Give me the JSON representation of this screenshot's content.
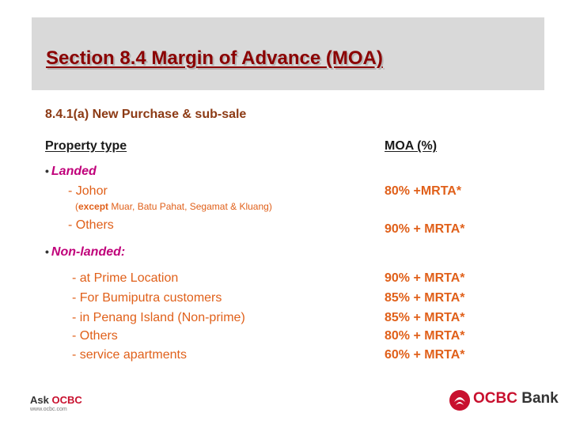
{
  "title": "Section 8.4 Margin of Advance (MOA)",
  "subtitle": "8.4.1(a) New Purchase & sub-sale",
  "table": {
    "col1_header": "Property type",
    "col2_header": "MOA (%)"
  },
  "landed": {
    "label": "Landed",
    "items": [
      {
        "name": "- Johor",
        "value": "80% +MRTA*"
      },
      {
        "name": "- Others",
        "value": "90% + MRTA*"
      }
    ],
    "note_prefix": "(",
    "note_bold": "except",
    "note_rest": " Muar, Batu Pahat, Segamat & Kluang)"
  },
  "non_landed": {
    "label": "Non-landed:",
    "items": [
      {
        "name": "- at Prime Location",
        "value": "90% + MRTA*"
      },
      {
        "name": "- For Bumiputra customers",
        "value": "85% + MRTA*"
      },
      {
        "name": "- in Penang Island (Non-prime)",
        "value": "85% + MRTA*"
      },
      {
        "name": "- Others",
        "value": "80% + MRTA*"
      },
      {
        "name": "- service apartments",
        "value": "60% + MRTA*"
      }
    ]
  },
  "footer": {
    "ask": "Ask",
    "brand": "OCBC",
    "website": "www.ocbc.com",
    "logo_brand": "OCBC",
    "logo_suffix": " Bank"
  },
  "colors": {
    "title": "#8b0000",
    "value": "#e0601a",
    "category": "#c0007a",
    "brand_red": "#c8102e"
  }
}
